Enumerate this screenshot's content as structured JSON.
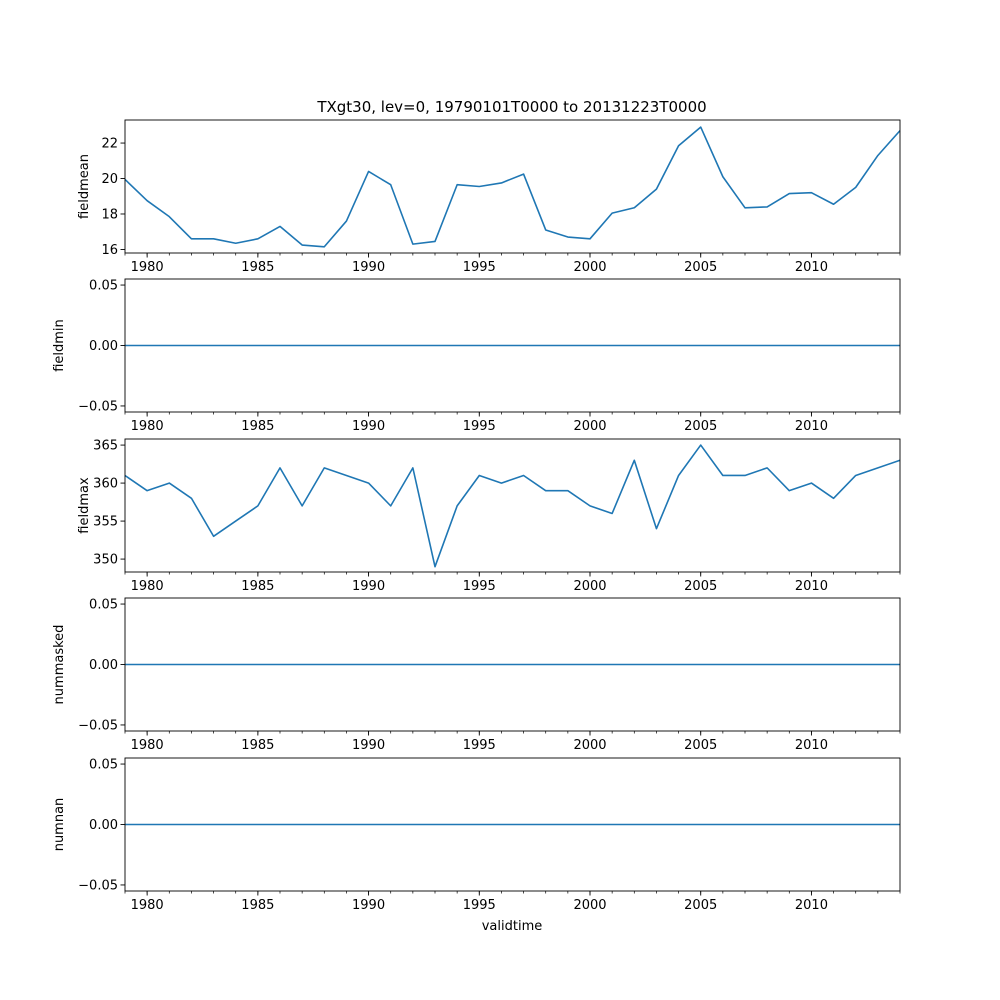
{
  "figure": {
    "title": "TXgt30, lev=0, 19790101T0000 to 20131223T0000",
    "xlabel": "validtime",
    "line_color": "#1f77b4"
  },
  "chart_data": [
    {
      "type": "line",
      "ylabel": "fieldmean",
      "xlim": [
        1979,
        2014
      ],
      "ylim": [
        15.8,
        23.3
      ],
      "yticks": [
        "16",
        "18",
        "20",
        "22"
      ],
      "xticks": [
        "1980",
        "1985",
        "1990",
        "1995",
        "2000",
        "2005",
        "2010"
      ],
      "x": [
        1979,
        1980,
        1981,
        1982,
        1983,
        1984,
        1985,
        1986,
        1987,
        1988,
        1989,
        1990,
        1991,
        1992,
        1993,
        1994,
        1995,
        1996,
        1997,
        1998,
        1999,
        2000,
        2001,
        2002,
        2003,
        2004,
        2005,
        2006,
        2007,
        2008,
        2009,
        2010,
        2011,
        2012,
        2013,
        2014
      ],
      "values": [
        19.95,
        18.75,
        17.85,
        16.6,
        16.6,
        16.35,
        16.6,
        17.3,
        16.25,
        16.15,
        17.6,
        20.4,
        19.65,
        16.3,
        16.45,
        19.65,
        19.55,
        19.75,
        20.25,
        17.1,
        16.7,
        16.6,
        18.05,
        18.35,
        19.4,
        21.85,
        22.9,
        20.1,
        18.35,
        18.4,
        19.15,
        19.2,
        18.55,
        19.5,
        21.3,
        22.7
      ]
    },
    {
      "type": "line",
      "ylabel": "fieldmin",
      "xlim": [
        1979,
        2014
      ],
      "ylim": [
        -0.055,
        0.055
      ],
      "yticks": [
        "−0.05",
        "0.00",
        "0.05"
      ],
      "xticks": [
        "1980",
        "1985",
        "1990",
        "1995",
        "2000",
        "2005",
        "2010"
      ],
      "x": [
        1979,
        2014
      ],
      "values": [
        0,
        0
      ]
    },
    {
      "type": "line",
      "ylabel": "fieldmax",
      "xlim": [
        1979,
        2014
      ],
      "ylim": [
        348.3,
        365.8
      ],
      "yticks": [
        "350",
        "355",
        "360",
        "365"
      ],
      "xticks": [
        "1980",
        "1985",
        "1990",
        "1995",
        "2000",
        "2005",
        "2010"
      ],
      "x": [
        1979,
        1980,
        1981,
        1982,
        1983,
        1984,
        1985,
        1986,
        1987,
        1988,
        1989,
        1990,
        1991,
        1992,
        1993,
        1994,
        1995,
        1996,
        1997,
        1998,
        1999,
        2000,
        2001,
        2002,
        2003,
        2004,
        2005,
        2006,
        2007,
        2008,
        2009,
        2010,
        2011,
        2012,
        2013,
        2014
      ],
      "values": [
        361,
        359,
        360,
        358,
        353,
        355,
        357,
        362,
        357,
        362,
        361,
        360,
        357,
        362,
        349,
        357,
        361,
        360,
        361,
        359,
        359,
        357,
        356,
        363,
        354,
        361,
        365,
        361,
        361,
        362,
        359,
        360,
        358,
        361,
        362,
        363
      ]
    },
    {
      "type": "line",
      "ylabel": "nummasked",
      "xlim": [
        1979,
        2014
      ],
      "ylim": [
        -0.055,
        0.055
      ],
      "yticks": [
        "−0.05",
        "0.00",
        "0.05"
      ],
      "xticks": [
        "1980",
        "1985",
        "1990",
        "1995",
        "2000",
        "2005",
        "2010"
      ],
      "x": [
        1979,
        2014
      ],
      "values": [
        0,
        0
      ]
    },
    {
      "type": "line",
      "ylabel": "numnan",
      "xlim": [
        1979,
        2014
      ],
      "ylim": [
        -0.055,
        0.055
      ],
      "yticks": [
        "−0.05",
        "0.00",
        "0.05"
      ],
      "xticks": [
        "1980",
        "1985",
        "1990",
        "1995",
        "2000",
        "2005",
        "2010"
      ],
      "x": [
        1979,
        2014
      ],
      "values": [
        0,
        0
      ]
    }
  ]
}
